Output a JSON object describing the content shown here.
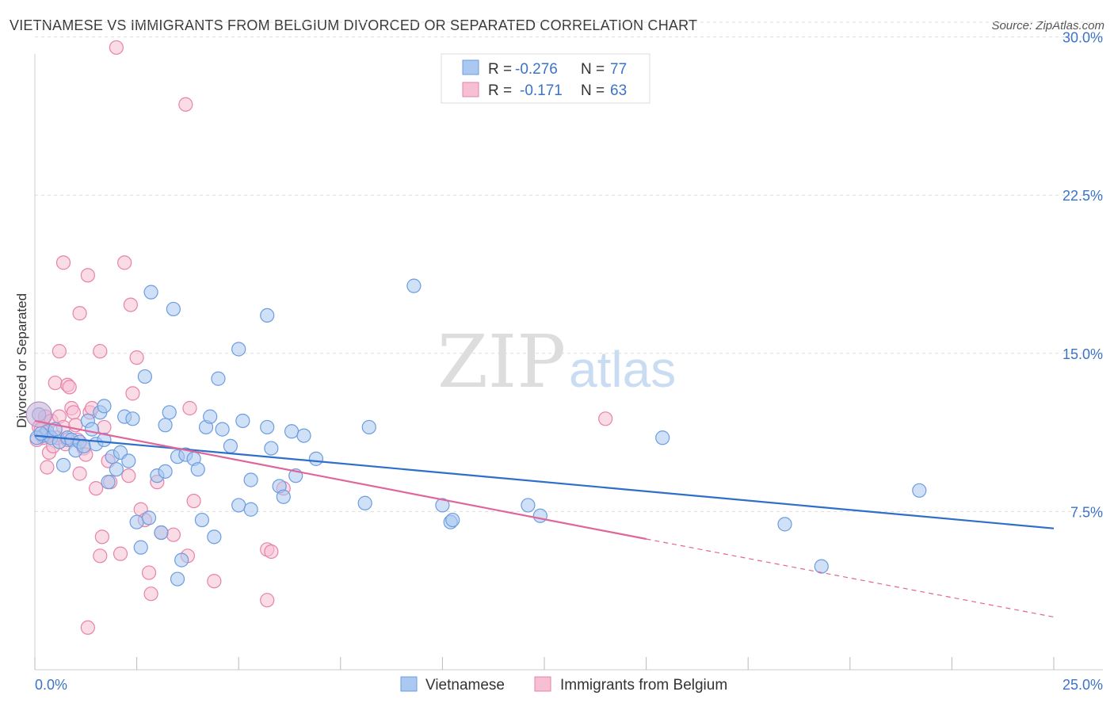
{
  "title": "VIETNAMESE VS IMMIGRANTS FROM BELGIUM DIVORCED OR SEPARATED CORRELATION CHART",
  "source": "Source: ZipAtlas.com",
  "watermark": {
    "zip": "ZIP",
    "atlas": "atlas"
  },
  "legend_top": [
    {
      "r_label": "R = ",
      "r_value": "-0.276",
      "n_label": "N = ",
      "n_value": "77"
    },
    {
      "r_label": "R = ",
      "r_value": "-0.171",
      "n_label": "N = ",
      "n_value": "63"
    }
  ],
  "legend_bottom": [
    "Vietnamese",
    "Immigrants from Belgium"
  ],
  "chart_data": {
    "type": "scatter",
    "ylabel": "Divorced or Separated",
    "xlabel": "",
    "xlim": [
      0,
      25
    ],
    "ylim": [
      0,
      31
    ],
    "x_tick_labels": [
      "0.0%",
      "25.0%"
    ],
    "y_ticks": [
      7.5,
      15.0,
      22.5,
      30.0
    ],
    "y_tick_labels": [
      "7.5%",
      "15.0%",
      "22.5%",
      "30.0%"
    ],
    "grid": true,
    "colors": {
      "blue": "#6a9de0",
      "blue_fill": "#aac8f0",
      "blue_line": "#2f6fc9",
      "pink": "#e882a8",
      "pink_fill": "#f6bfd3",
      "pink_line": "#e0669a"
    },
    "series": [
      {
        "name": "Vietnamese",
        "color": "#6a9de0",
        "trend": {
          "x0": 0,
          "y0": 11.1,
          "x1": 25,
          "y1": 6.7
        },
        "points": [
          [
            0.1,
            12.1
          ],
          [
            0.2,
            11.1
          ],
          [
            0.3,
            11.3
          ],
          [
            0.4,
            11.0
          ],
          [
            0.5,
            11.4
          ],
          [
            0.6,
            10.8
          ],
          [
            0.7,
            9.7
          ],
          [
            0.8,
            11.0
          ],
          [
            0.9,
            10.9
          ],
          [
            1.0,
            10.4
          ],
          [
            1.1,
            10.8
          ],
          [
            1.2,
            10.6
          ],
          [
            1.3,
            11.8
          ],
          [
            1.4,
            11.4
          ],
          [
            1.5,
            10.7
          ],
          [
            1.6,
            12.2
          ],
          [
            1.7,
            10.9
          ],
          [
            1.7,
            12.5
          ],
          [
            1.8,
            8.9
          ],
          [
            1.9,
            10.1
          ],
          [
            2.0,
            9.5
          ],
          [
            2.1,
            10.3
          ],
          [
            2.2,
            12.0
          ],
          [
            2.3,
            9.9
          ],
          [
            2.4,
            11.9
          ],
          [
            2.5,
            7.0
          ],
          [
            2.6,
            5.8
          ],
          [
            2.7,
            13.9
          ],
          [
            2.8,
            7.2
          ],
          [
            2.85,
            17.9
          ],
          [
            3.0,
            9.2
          ],
          [
            3.1,
            6.5
          ],
          [
            3.2,
            9.4
          ],
          [
            3.2,
            11.6
          ],
          [
            3.3,
            12.2
          ],
          [
            3.4,
            17.1
          ],
          [
            3.5,
            10.1
          ],
          [
            3.5,
            4.3
          ],
          [
            3.6,
            5.2
          ],
          [
            3.7,
            10.2
          ],
          [
            3.9,
            10.0
          ],
          [
            4.0,
            9.5
          ],
          [
            4.1,
            7.1
          ],
          [
            4.2,
            11.5
          ],
          [
            4.3,
            12.0
          ],
          [
            4.4,
            6.3
          ],
          [
            4.5,
            13.8
          ],
          [
            4.6,
            11.4
          ],
          [
            4.8,
            10.6
          ],
          [
            5.0,
            15.2
          ],
          [
            5.1,
            11.8
          ],
          [
            5.0,
            7.8
          ],
          [
            5.3,
            9.0
          ],
          [
            5.3,
            7.6
          ],
          [
            5.7,
            16.8
          ],
          [
            5.7,
            11.5
          ],
          [
            5.8,
            10.5
          ],
          [
            6.0,
            8.7
          ],
          [
            6.1,
            8.2
          ],
          [
            6.3,
            11.3
          ],
          [
            6.4,
            9.2
          ],
          [
            6.6,
            11.1
          ],
          [
            6.9,
            10.0
          ],
          [
            8.1,
            7.9
          ],
          [
            8.2,
            11.5
          ],
          [
            9.3,
            18.2
          ],
          [
            10.0,
            7.8
          ],
          [
            10.2,
            7.0
          ],
          [
            10.25,
            7.1
          ],
          [
            12.1,
            7.8
          ],
          [
            12.4,
            7.3
          ],
          [
            15.4,
            11.0
          ],
          [
            18.4,
            6.9
          ],
          [
            19.3,
            4.9
          ],
          [
            21.7,
            8.5
          ],
          [
            0.05,
            11.0
          ],
          [
            0.15,
            11.2
          ]
        ]
      },
      {
        "name": "Immigrants from Belgium",
        "color": "#e882a8",
        "trend": {
          "x0": 0,
          "y0": 11.8,
          "x1": 15,
          "y1": 6.2,
          "dash_x1": 25,
          "dash_y1": 2.5
        },
        "points": [
          [
            0.1,
            11.5
          ],
          [
            0.2,
            11.0
          ],
          [
            0.25,
            12.0
          ],
          [
            0.3,
            9.6
          ],
          [
            0.35,
            10.3
          ],
          [
            0.4,
            11.8
          ],
          [
            0.45,
            10.6
          ],
          [
            0.5,
            13.6
          ],
          [
            0.55,
            11.0
          ],
          [
            0.6,
            12.0
          ],
          [
            0.6,
            15.1
          ],
          [
            0.7,
            11.5
          ],
          [
            0.75,
            10.7
          ],
          [
            0.8,
            10.9
          ],
          [
            0.7,
            19.3
          ],
          [
            0.8,
            13.5
          ],
          [
            0.85,
            13.4
          ],
          [
            0.9,
            12.4
          ],
          [
            0.95,
            12.2
          ],
          [
            1.0,
            11.6
          ],
          [
            1.05,
            10.9
          ],
          [
            1.1,
            9.3
          ],
          [
            1.1,
            16.9
          ],
          [
            1.2,
            10.5
          ],
          [
            1.25,
            10.2
          ],
          [
            1.3,
            18.7
          ],
          [
            1.35,
            12.2
          ],
          [
            1.4,
            12.4
          ],
          [
            1.5,
            8.6
          ],
          [
            1.6,
            15.1
          ],
          [
            1.6,
            5.4
          ],
          [
            1.65,
            6.3
          ],
          [
            1.7,
            11.5
          ],
          [
            1.8,
            9.9
          ],
          [
            1.85,
            8.9
          ],
          [
            1.3,
            2.0
          ],
          [
            2.0,
            29.5
          ],
          [
            2.1,
            5.5
          ],
          [
            2.2,
            19.3
          ],
          [
            2.3,
            9.2
          ],
          [
            2.35,
            17.3
          ],
          [
            2.4,
            13.1
          ],
          [
            2.5,
            14.8
          ],
          [
            2.6,
            7.6
          ],
          [
            2.7,
            7.1
          ],
          [
            2.8,
            4.6
          ],
          [
            2.85,
            3.6
          ],
          [
            3.0,
            8.9
          ],
          [
            3.1,
            6.5
          ],
          [
            3.4,
            6.4
          ],
          [
            3.7,
            26.8
          ],
          [
            3.75,
            5.4
          ],
          [
            3.8,
            12.4
          ],
          [
            3.9,
            8.0
          ],
          [
            4.4,
            4.2
          ],
          [
            5.7,
            5.7
          ],
          [
            5.8,
            5.6
          ],
          [
            5.7,
            3.3
          ],
          [
            6.1,
            8.6
          ],
          [
            14.0,
            11.9
          ],
          [
            0.05,
            10.9
          ],
          [
            0.15,
            11.4
          ],
          [
            0.35,
            11.1
          ]
        ]
      }
    ]
  }
}
